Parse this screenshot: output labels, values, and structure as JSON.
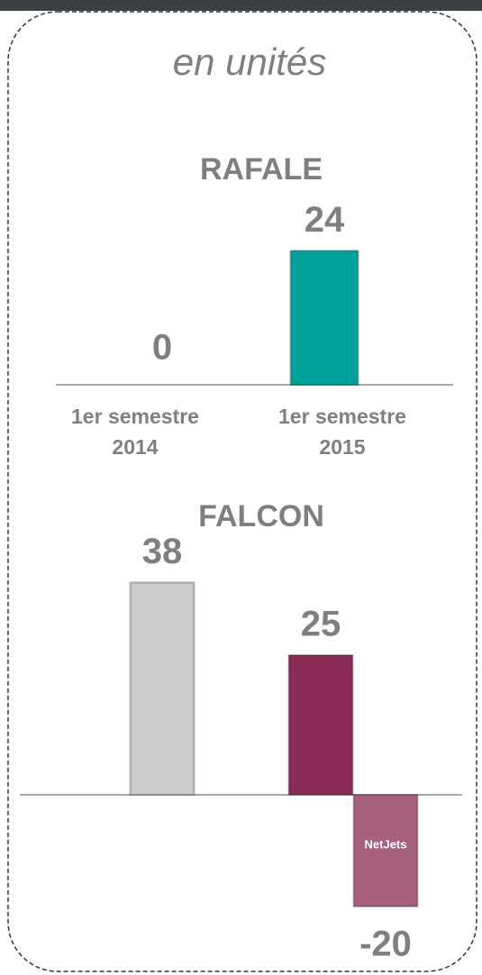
{
  "unit_note": "en unités",
  "chart_data": [
    {
      "type": "bar",
      "title": "RAFALE",
      "categories": [
        "1er semestre 2014",
        "1er semestre 2015"
      ],
      "values": [
        0,
        24
      ],
      "colors": [
        "#00a19a",
        "#00a19a"
      ]
    },
    {
      "type": "bar",
      "title": "FALCON",
      "values": [
        38,
        25,
        -20
      ],
      "bar_labels": [
        null,
        null,
        "NetJets"
      ],
      "colors": [
        "#cbcbcb",
        "#8b2c58",
        "#a8607f"
      ]
    }
  ]
}
